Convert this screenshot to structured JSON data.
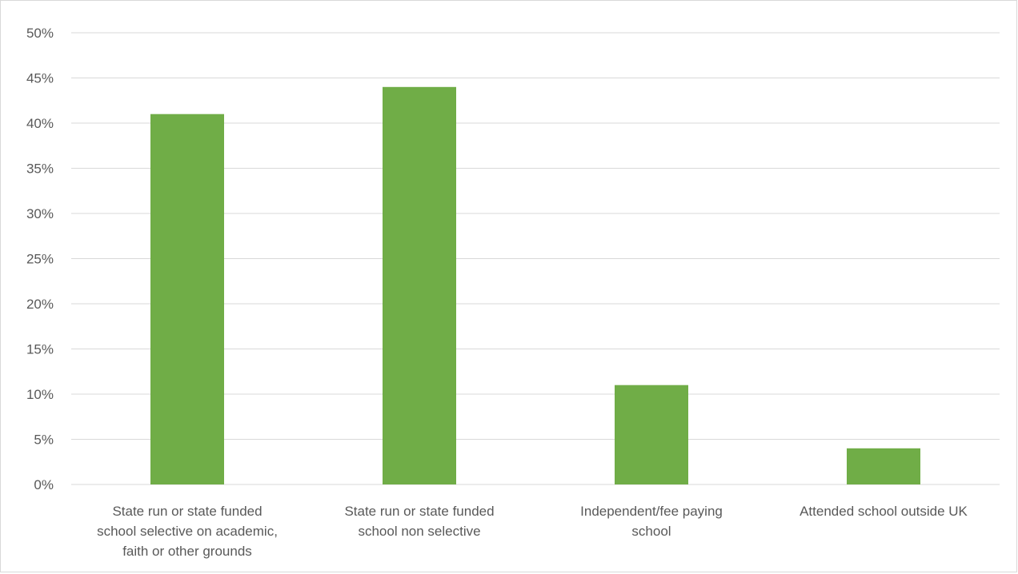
{
  "chart_data": {
    "type": "bar",
    "categories": [
      [
        "State run or state funded",
        "school selective on academic,",
        "faith or other grounds"
      ],
      [
        "State run or state funded",
        "school non selective"
      ],
      [
        "Independent/fee paying",
        "school"
      ],
      [
        "Attended school outside UK"
      ]
    ],
    "values": [
      41,
      44,
      11,
      4
    ],
    "value_format": "percent",
    "ylim": [
      0,
      50
    ],
    "yticks": [
      "0%",
      "5%",
      "10%",
      "15%",
      "20%",
      "25%",
      "30%",
      "35%",
      "40%",
      "45%",
      "50%"
    ],
    "grid": true,
    "legend": "none",
    "colors": {
      "bar": "#70ad47",
      "grid": "#d9d9d9",
      "text": "#595959",
      "border": "#d9d9d9"
    }
  }
}
